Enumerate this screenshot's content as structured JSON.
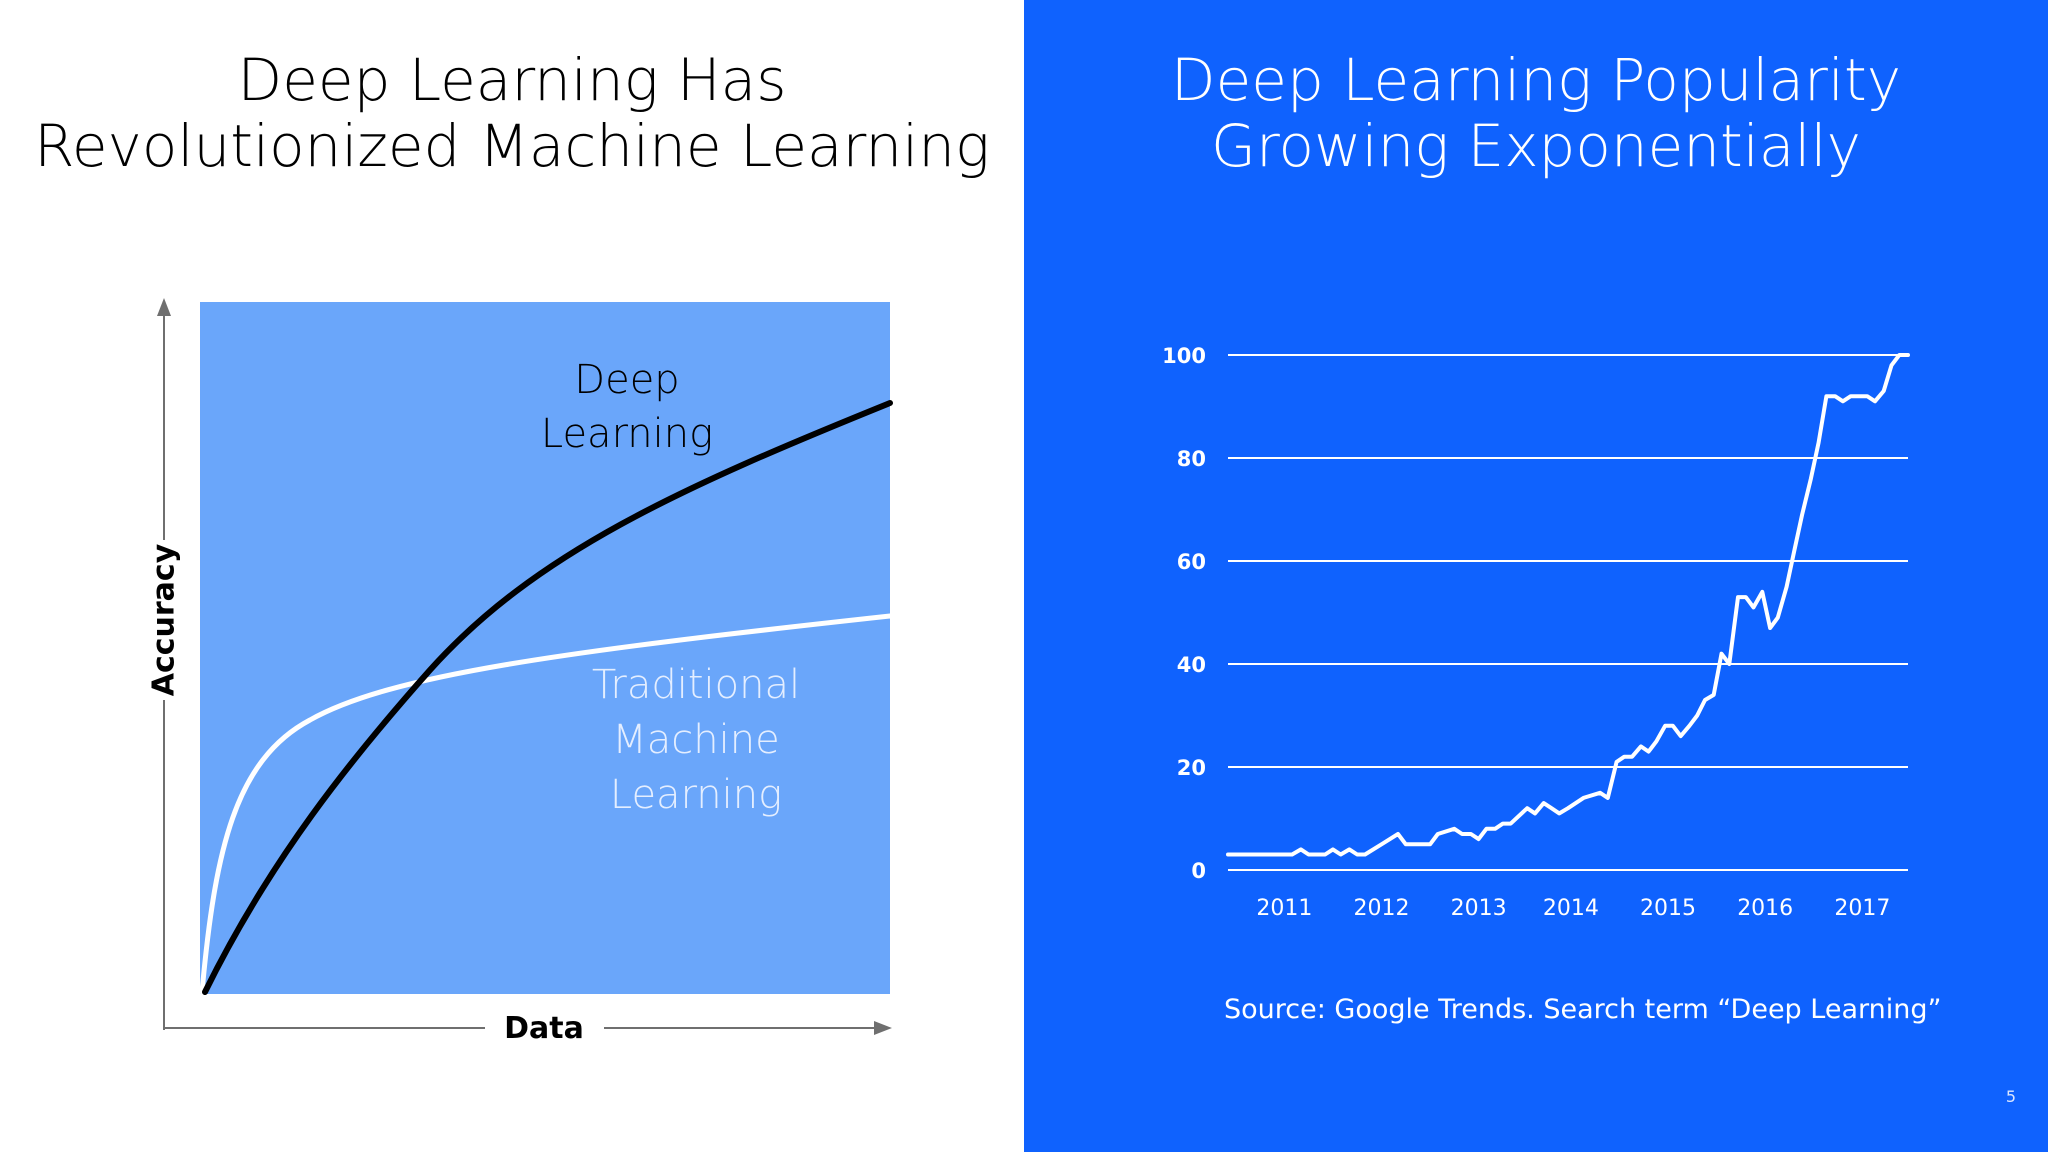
{
  "left": {
    "title": "Deep Learning Has\nRevolutionized Machine Learning",
    "axis_x_label": "Data",
    "axis_y_label": "Accuracy",
    "dl_label": "Deep\nLearning",
    "tml_label": "Traditional\nMachine\nLearning",
    "colors": {
      "panel": "#6aa6fa",
      "dl_curve": "#000000",
      "tml_curve": "#ffffff",
      "axis": "#6f6f6f"
    }
  },
  "right": {
    "title": "Deep Learning Popularity\nGrowing Exponentially",
    "source": "Source: Google Trends. Search term “Deep Learning”",
    "background": "#0f62fe"
  },
  "page_number": "5",
  "chart_data": {
    "type": "line",
    "x_tick_labels": [
      "2011",
      "2012",
      "2013",
      "2014",
      "2015",
      "2016",
      "2017"
    ],
    "x_tick_positions": [
      2011.5,
      2012.5,
      2013.5,
      2014.45,
      2015.45,
      2016.45,
      2017.45
    ],
    "y_ticks": [
      0,
      20,
      40,
      60,
      80,
      100
    ],
    "ylim": [
      0,
      100
    ],
    "xlim": [
      2010.92,
      2017.92
    ],
    "grid": true,
    "series": [
      {
        "x": [
          2010.92,
          2011.17,
          2011.42,
          2011.58,
          2011.67,
          2011.75,
          2011.92,
          2012.0,
          2012.08,
          2012.17,
          2012.25,
          2012.33,
          2012.5,
          2012.67,
          2012.75,
          2012.83,
          2013.0,
          2013.08,
          2013.25,
          2013.33,
          2013.42,
          2013.5,
          2013.58,
          2013.67,
          2013.75,
          2013.83,
          2014.0,
          2014.08,
          2014.17,
          2014.25,
          2014.33,
          2014.42,
          2014.58,
          2014.75,
          2014.83,
          2014.92,
          2015.0,
          2015.08,
          2015.17,
          2015.25,
          2015.33,
          2015.42,
          2015.5,
          2015.58,
          2015.67,
          2015.75,
          2015.83,
          2015.92,
          2016.0,
          2016.08,
          2016.17,
          2016.25,
          2016.33,
          2016.42,
          2016.5,
          2016.58,
          2016.67,
          2016.75,
          2016.83,
          2016.92,
          2017.0,
          2017.08,
          2017.17,
          2017.25,
          2017.33,
          2017.42,
          2017.5,
          2017.58,
          2017.67,
          2017.75,
          2017.83,
          2017.92
        ],
        "y": [
          3,
          3,
          3,
          3,
          4,
          3,
          3,
          4,
          3,
          4,
          3,
          3,
          5,
          7,
          5,
          5,
          5,
          7,
          8,
          7,
          7,
          6,
          8,
          8,
          9,
          9,
          12,
          11,
          13,
          12,
          11,
          12,
          14,
          15,
          14,
          21,
          22,
          22,
          24,
          23,
          25,
          28,
          28,
          26,
          28,
          30,
          33,
          34,
          42,
          40,
          53,
          53,
          51,
          54,
          47,
          49,
          55,
          62,
          69,
          76,
          83,
          92,
          92,
          91,
          92,
          92,
          92,
          91,
          93,
          98,
          100,
          100
        ]
      }
    ]
  }
}
